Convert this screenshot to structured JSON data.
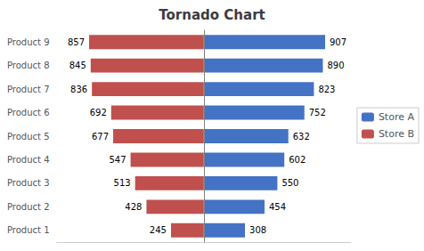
{
  "chart_data": {
    "type": "bar",
    "title": "Tornado Chart",
    "orientation": "horizontal",
    "categories": [
      "Product 1",
      "Product 2",
      "Product 3",
      "Product 4",
      "Product 5",
      "Product 6",
      "Product 7",
      "Product 8",
      "Product 9"
    ],
    "series": [
      {
        "name": "Store A",
        "color": "#4472C4",
        "values": [
          308,
          454,
          550,
          602,
          632,
          752,
          823,
          890,
          907
        ],
        "direction": "right"
      },
      {
        "name": "Store B",
        "color": "#C0504D",
        "values": [
          245,
          428,
          513,
          547,
          677,
          692,
          836,
          845,
          857
        ],
        "direction": "left"
      }
    ],
    "xlim": [
      -1100,
      1100
    ],
    "data_labels": true,
    "tick_labels": "y",
    "grid": false,
    "legend": "right"
  }
}
